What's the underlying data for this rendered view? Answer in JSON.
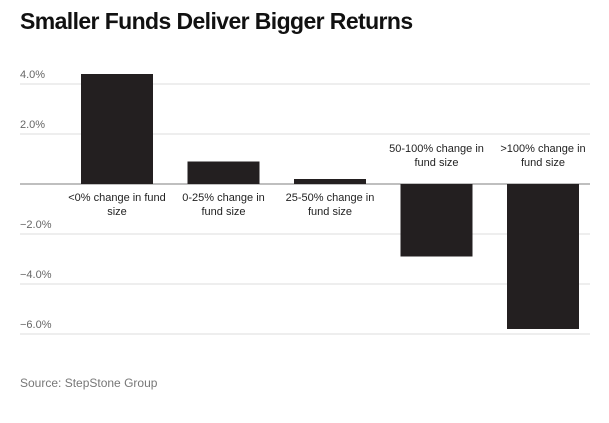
{
  "chart_data": {
    "type": "bar",
    "title": "Smaller Funds Deliver Bigger Returns",
    "source": "Source: StepStone Group",
    "categories": [
      [
        "<0% change in fund",
        "size"
      ],
      [
        "0-25% change in",
        "fund size"
      ],
      [
        "25-50% change in",
        "fund size"
      ],
      [
        "50-100% change in",
        "fund size"
      ],
      [
        ">100% change in",
        "fund size"
      ]
    ],
    "values": [
      4.4,
      0.9,
      0.2,
      -2.9,
      -5.8
    ],
    "yticks": [
      4,
      2,
      0,
      -2,
      -4,
      -6
    ],
    "ytick_labels": [
      "4.0%",
      "2.0%",
      "",
      "−2.0%",
      "−4.0%",
      "−6.0%"
    ],
    "ylim": [
      -6,
      4
    ],
    "xlabel": "",
    "ylabel": "",
    "bar_color": "#231f20",
    "grid_color": "#dddddd",
    "zero_line_color": "#999999"
  }
}
